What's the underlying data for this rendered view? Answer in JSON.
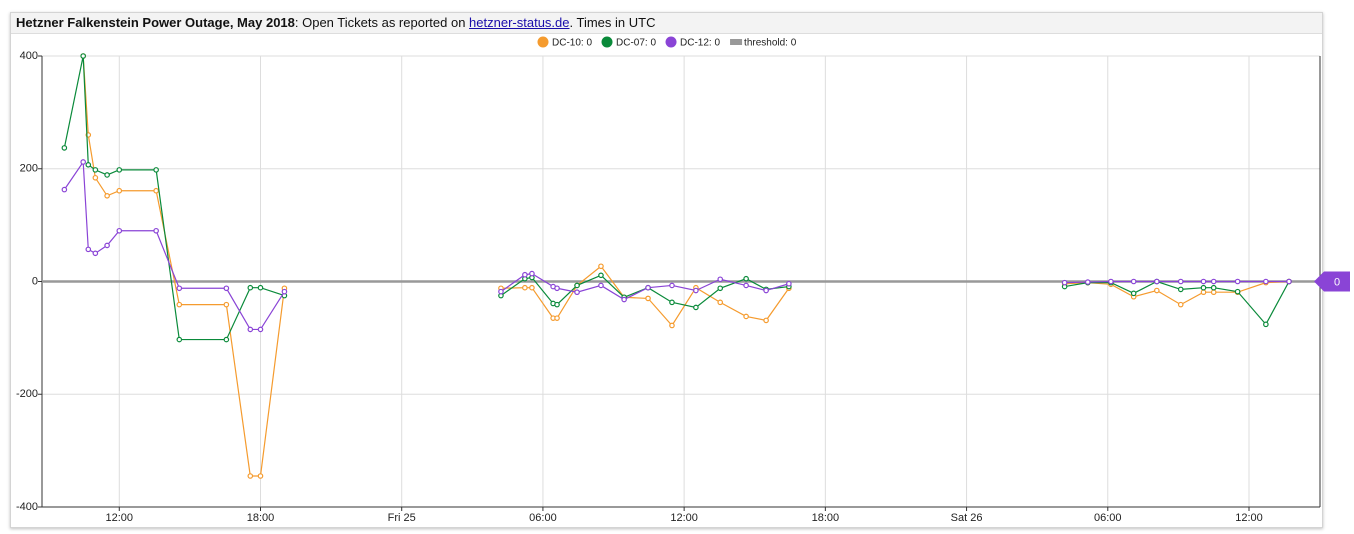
{
  "chart_data": {
    "type": "line",
    "title_bold": "Hetzner Falkenstein Power Outage, May 2018",
    "title_text": ": Open Tickets as reported on ",
    "title_link": "hetzner-status.de",
    "title_end": ". Times in UTC",
    "x": [
      "2018-05-24T09:40",
      "2018-05-24T10:28",
      "2018-05-24T10:41",
      "2018-05-24T10:59",
      "2018-05-24T11:29",
      "2018-05-24T12:00",
      "2018-05-24T13:34",
      "2018-05-24T14:33",
      "2018-05-24T16:33",
      "2018-05-24T17:34",
      "2018-05-24T18:00",
      "2018-05-24T19:01",
      "2018-05-25T04:13",
      "2018-05-25T05:14",
      "2018-05-25T05:32",
      "2018-05-25T06:26",
      "2018-05-25T06:36",
      "2018-05-25T07:27",
      "2018-05-25T08:28",
      "2018-05-25T09:27",
      "2018-05-25T10:28",
      "2018-05-25T11:29",
      "2018-05-25T12:30",
      "2018-05-25T13:32",
      "2018-05-25T14:38",
      "2018-05-25T15:29",
      "2018-05-25T16:27",
      "2018-05-26T04:10",
      "2018-05-26T05:09",
      "2018-05-26T06:08",
      "2018-05-26T07:06",
      "2018-05-26T08:05",
      "2018-05-26T09:06",
      "2018-05-26T10:04",
      "2018-05-26T10:30",
      "2018-05-26T11:31",
      "2018-05-26T12:43",
      "2018-05-26T13:42"
    ],
    "series": [
      {
        "name": "DC-10: 0",
        "color": "#f59b2e",
        "values": [
          null,
          400,
          260,
          184,
          152,
          161,
          161,
          -41,
          -41,
          -345,
          -345,
          -12,
          -12,
          -11,
          -11,
          -65,
          -65,
          -7,
          27,
          -28,
          -30,
          -78,
          -11,
          -37,
          -62,
          -69,
          -12,
          -4,
          -2,
          -5,
          -27,
          -16,
          -41,
          -19,
          -19,
          -19,
          -2,
          0
        ]
      },
      {
        "name": "DC-07: 0",
        "color": "#0a8a3a",
        "values": [
          237,
          400,
          207,
          198,
          189,
          198,
          198,
          -103,
          -103,
          -11,
          -11,
          -25,
          -25,
          5,
          7,
          -39,
          -41,
          -7,
          11,
          -28,
          -11,
          -37,
          -46,
          -12,
          5,
          -14,
          -9,
          -9,
          -2,
          -2,
          -21,
          0,
          -14,
          -11,
          -11,
          -18,
          -76,
          0
        ]
      },
      {
        "name": "DC-12: 0",
        "color": "#8a44d6",
        "values": [
          163,
          212,
          57,
          50,
          64,
          90,
          90,
          -12,
          -12,
          -85,
          -85,
          -18,
          -18,
          12,
          14,
          -9,
          -12,
          -19,
          -7,
          -32,
          -11,
          -7,
          -16,
          4,
          -7,
          -16,
          -4,
          -2,
          -1,
          0,
          0,
          0,
          0,
          0,
          0,
          0,
          0,
          0
        ]
      }
    ],
    "threshold": {
      "name": "threshold: 0",
      "value": 0,
      "color": "#999999"
    },
    "flag": {
      "value": 0,
      "color": "#8a44d6"
    },
    "xlim": [
      "2018-05-24T08:43",
      "2018-05-26T15:01"
    ],
    "xticks": [
      {
        "value": "2018-05-24T12:00",
        "label": "12:00"
      },
      {
        "value": "2018-05-24T18:00",
        "label": "18:00"
      },
      {
        "value": "2018-05-25T00:00",
        "label": "Fri 25"
      },
      {
        "value": "2018-05-25T06:00",
        "label": "06:00"
      },
      {
        "value": "2018-05-25T12:00",
        "label": "12:00"
      },
      {
        "value": "2018-05-25T18:00",
        "label": "18:00"
      },
      {
        "value": "2018-05-26T00:00",
        "label": "Sat 26"
      },
      {
        "value": "2018-05-26T06:00",
        "label": "06:00"
      },
      {
        "value": "2018-05-26T12:00",
        "label": "12:00"
      }
    ],
    "ylim": [
      -400,
      400
    ],
    "yticks": [
      400,
      200,
      0,
      -200,
      -400
    ],
    "grid": true
  }
}
